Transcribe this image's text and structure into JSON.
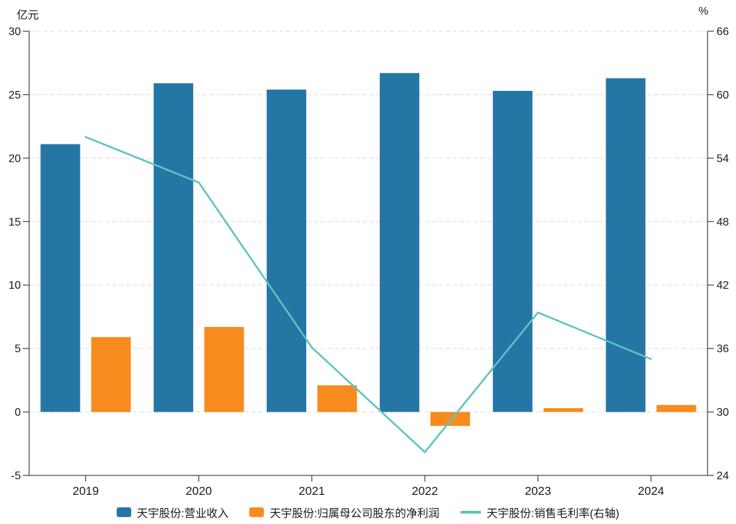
{
  "chart_data": {
    "type": "bar",
    "subtype": "grouped bars with secondary-axis line",
    "categories": [
      "2019",
      "2020",
      "2021",
      "2022",
      "2023",
      "2024"
    ],
    "series": [
      {
        "name": "天宇股份:营业收入",
        "type": "bar",
        "axis": "left",
        "color": "#2576a5",
        "values": [
          21.1,
          25.9,
          25.4,
          26.7,
          25.3,
          26.3
        ]
      },
      {
        "name": "天宇股份:归属母公司股东的净利润",
        "type": "bar",
        "axis": "left",
        "color": "#f78b1e",
        "values": [
          5.9,
          6.7,
          2.1,
          -1.1,
          0.3,
          0.55
        ]
      },
      {
        "name": "天宇股份:销售毛利率(右轴)",
        "type": "line",
        "axis": "right",
        "color": "#5ec4bf",
        "values": [
          56.0,
          51.7,
          36.1,
          26.2,
          39.4,
          35.0
        ]
      }
    ],
    "left_axis": {
      "label": "亿元",
      "min": -5,
      "max": 30,
      "ticks": [
        -5,
        0,
        5,
        10,
        15,
        20,
        25,
        30
      ]
    },
    "right_axis": {
      "label": "%",
      "min": 24,
      "max": 66,
      "ticks": [
        24,
        30,
        36,
        42,
        48,
        54,
        60,
        66
      ]
    },
    "title": "",
    "grid": "dashed horizontal gridlines",
    "legend_position": "bottom center",
    "colors": {
      "revenue_bar": "#2576a5",
      "net_profit_bar": "#f78b1e",
      "gross_margin_line": "#5ec4bf",
      "gridline": "#d9d9d9",
      "axis": "#4a4a4a",
      "text": "#1a1a1a"
    }
  }
}
